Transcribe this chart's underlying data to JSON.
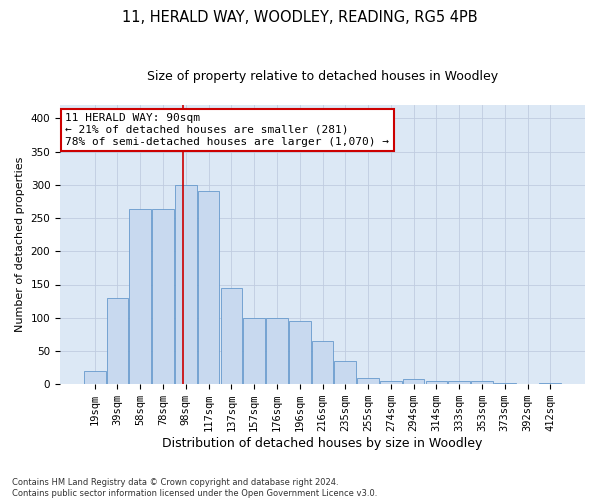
{
  "title1": "11, HERALD WAY, WOODLEY, READING, RG5 4PB",
  "title2": "Size of property relative to detached houses in Woodley",
  "xlabel": "Distribution of detached houses by size in Woodley",
  "ylabel": "Number of detached properties",
  "footnote": "Contains HM Land Registry data © Crown copyright and database right 2024.\nContains public sector information licensed under the Open Government Licence v3.0.",
  "bar_labels": [
    "19sqm",
    "39sqm",
    "58sqm",
    "78sqm",
    "98sqm",
    "117sqm",
    "137sqm",
    "157sqm",
    "176sqm",
    "196sqm",
    "216sqm",
    "235sqm",
    "255sqm",
    "274sqm",
    "294sqm",
    "314sqm",
    "333sqm",
    "353sqm",
    "373sqm",
    "392sqm",
    "412sqm"
  ],
  "bar_values": [
    20,
    130,
    263,
    263,
    300,
    290,
    145,
    100,
    100,
    95,
    65,
    35,
    10,
    5,
    8,
    5,
    5,
    5,
    2,
    1,
    2
  ],
  "bar_color": "#c8d9ef",
  "bar_edge_color": "#6699cc",
  "bar_edge_width": 0.6,
  "vline_color": "#cc0000",
  "vline_pos": 3.88,
  "annotation_box_text": "11 HERALD WAY: 90sqm\n← 21% of detached houses are smaller (281)\n78% of semi-detached houses are larger (1,070) →",
  "annotation_box_color": "#cc0000",
  "annotation_box_fill": "#ffffff",
  "ylim": [
    0,
    420
  ],
  "yticks": [
    0,
    50,
    100,
    150,
    200,
    250,
    300,
    350,
    400
  ],
  "grid_color": "#c0cce0",
  "bg_color": "#dce8f5",
  "title1_fontsize": 10.5,
  "title2_fontsize": 9,
  "xlabel_fontsize": 9,
  "ylabel_fontsize": 8,
  "tick_fontsize": 7.5,
  "annot_fontsize": 8
}
